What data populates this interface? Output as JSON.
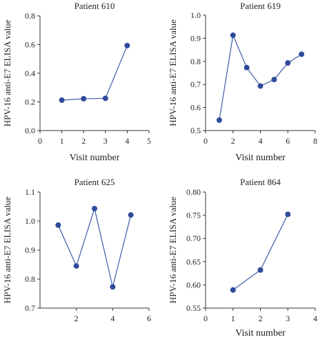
{
  "chart_data": [
    {
      "type": "line",
      "title": "Patient 610",
      "xlabel": "Visit number",
      "ylabel": "HPV-16 anti-E7 ELISA value",
      "xlim": [
        0,
        5
      ],
      "ylim": [
        0.0,
        0.8
      ],
      "xticks": [
        "0",
        "1",
        "2",
        "3",
        "4",
        "5"
      ],
      "yticks": [
        "0.0",
        "0.2",
        "0.4",
        "0.6",
        "0.8"
      ],
      "series": [
        {
          "x": [
            1,
            2,
            3,
            4
          ],
          "values": [
            0.212,
            0.222,
            0.225,
            0.593
          ]
        }
      ]
    },
    {
      "type": "line",
      "title": "Patient 619",
      "xlabel": "Visit number",
      "ylabel": "HPV-16 anti-E7 ELISA value",
      "xlim": [
        0,
        8
      ],
      "ylim": [
        0.5,
        1.0
      ],
      "xticks": [
        "0",
        "2",
        "4",
        "6",
        "8"
      ],
      "yticks": [
        "0.5",
        "0.6",
        "0.7",
        "0.8",
        "0.9",
        "1.0"
      ],
      "series": [
        {
          "x": [
            1,
            2,
            3,
            4,
            5,
            6,
            7
          ],
          "values": [
            0.545,
            0.913,
            0.773,
            0.693,
            0.721,
            0.793,
            0.831
          ]
        }
      ]
    },
    {
      "type": "line",
      "title": "Patient 625",
      "xlabel": "",
      "ylabel": "HPV-16 anti-E7 ELISA value",
      "xlim": [
        0,
        6
      ],
      "ylim": [
        0.7,
        1.1
      ],
      "xticks": [
        "2",
        "4",
        "6"
      ],
      "yticks": [
        "0.7",
        "0.8",
        "0.9",
        "1.0",
        "1.1"
      ],
      "series": [
        {
          "x": [
            1,
            2,
            3,
            4,
            5
          ],
          "values": [
            0.986,
            0.845,
            1.043,
            0.773,
            1.021
          ]
        }
      ]
    },
    {
      "type": "line",
      "title": "Patient 864",
      "xlabel": "Visit number",
      "ylabel": "HPV-16 anti-E7 ELISA value",
      "xlim": [
        0,
        4
      ],
      "ylim": [
        0.55,
        0.8
      ],
      "xticks": [
        "0",
        "1",
        "2",
        "3",
        "4"
      ],
      "yticks": [
        "0.55",
        "0.60",
        "0.65",
        "0.70",
        "0.75",
        "0.80"
      ],
      "series": [
        {
          "x": [
            1,
            2,
            3
          ],
          "values": [
            0.589,
            0.632,
            0.752
          ]
        }
      ]
    }
  ],
  "colors": {
    "series": "#3d5aa8",
    "marker": "#2f4b9c",
    "axis": "#333333"
  }
}
